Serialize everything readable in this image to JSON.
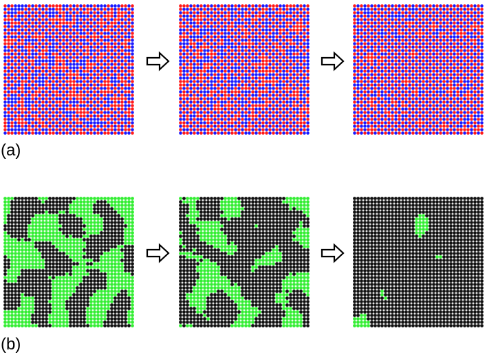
{
  "panel_labels": [
    "(a)",
    "(b)"
  ]
}
